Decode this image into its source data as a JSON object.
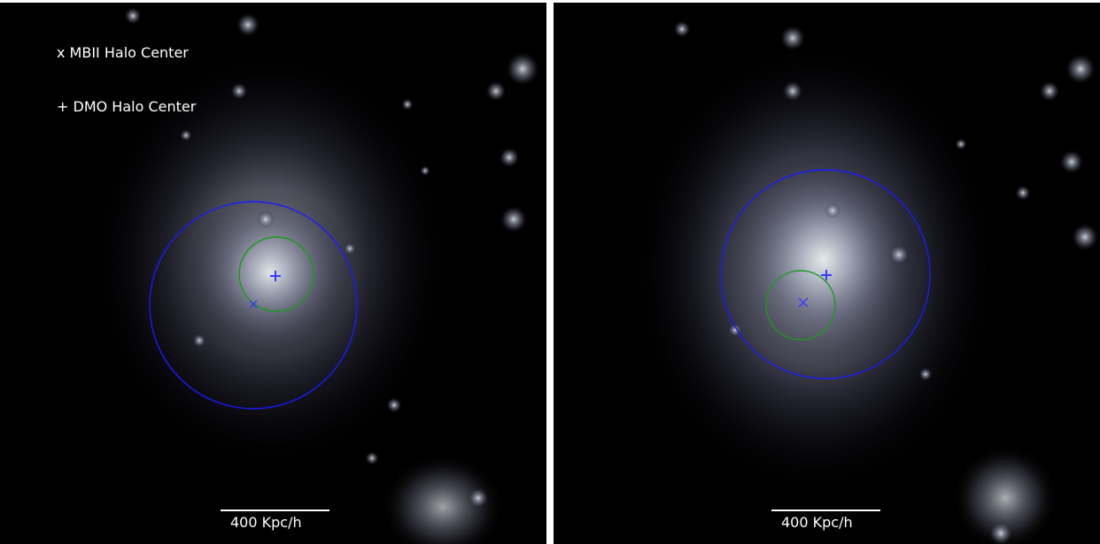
{
  "legend": {
    "mbii_label": "x MBII Halo Center",
    "dmo_label": "+ DMO Halo Center"
  },
  "panels": [
    {
      "id": "left",
      "scale_bar_label": "400 Kpc/h"
    },
    {
      "id": "right",
      "scale_bar_label": "400 Kpc/h"
    }
  ],
  "colors": {
    "background": "#000000",
    "halo_glow": "#c8ccdc",
    "outer_circle": "#1a1aff",
    "inner_circle": "#1a9a1a",
    "markers": "#3a3aff",
    "text": "#ffffff"
  }
}
